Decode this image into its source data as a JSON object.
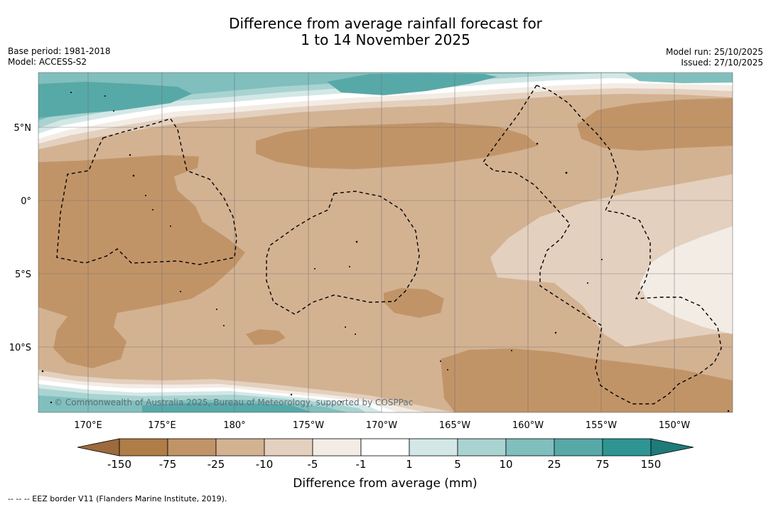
{
  "title_line1": "Difference from average rainfall forecast for",
  "title_line2": "1 to 14 November 2025",
  "base_period": "Base period: 1981-2018",
  "model": "Model: ACCESS-S2",
  "model_run": "Model run: 25/10/2025",
  "issued": "Issued: 27/10/2025",
  "credit": "© Commonwealth of Australia 2025, Bureau of Meteorology, supported by COSPPac",
  "lon_labels": [
    "170°E",
    "175°E",
    "180°",
    "175°W",
    "170°W",
    "165°W",
    "160°W",
    "155°W",
    "150°W"
  ],
  "lat_labels": [
    "5°N",
    "0°",
    "5°S",
    "10°S"
  ],
  "colorbar": {
    "title": "Difference from average (mm)",
    "ticks": [
      "-150",
      "-75",
      "-25",
      "-10",
      "-5",
      "-1",
      "1",
      "5",
      "10",
      "25",
      "75",
      "150"
    ],
    "colors": [
      "#9c6a3c",
      "#b07c48",
      "#c19468",
      "#d3b292",
      "#e4d0be",
      "#f3ece5",
      "#ffffff",
      "#d3e8e6",
      "#a9d3d1",
      "#80bfbd",
      "#57a9a8",
      "#2e9593",
      "#1f7a7a"
    ]
  },
  "legend_note": "--  --  -- EEZ border V11 (Flanders Marine Institute, 2019)."
}
